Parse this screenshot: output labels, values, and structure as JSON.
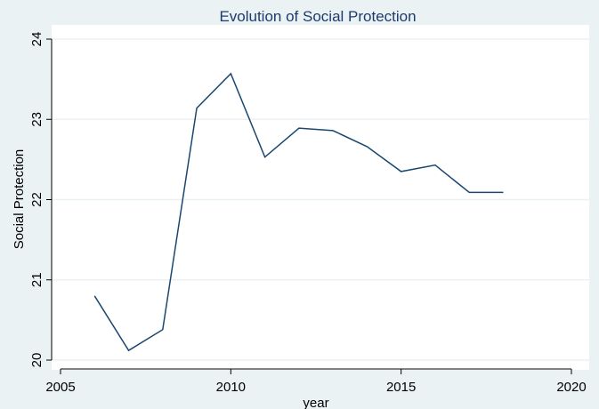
{
  "chart_data": {
    "type": "line",
    "title": "Evolution of Social Protection",
    "x_label": "year",
    "y_label": "Social Protection",
    "x": [
      2006,
      2007,
      2008,
      2009,
      2010,
      2011,
      2012,
      2013,
      2014,
      2015,
      2016,
      2017,
      2018
    ],
    "series": [
      {
        "name": "Social Protection",
        "color": "#1a476f",
        "values": [
          20.8,
          20.12,
          20.38,
          23.14,
          23.57,
          22.53,
          22.89,
          22.86,
          22.66,
          22.35,
          22.43,
          22.09,
          22.09
        ]
      }
    ],
    "xlim": [
      2005,
      2020
    ],
    "xticks": [
      2005,
      2010,
      2015,
      2020
    ],
    "ylim": [
      20,
      24
    ],
    "yticks": [
      20,
      21,
      22,
      23,
      24
    ],
    "grid": true
  }
}
